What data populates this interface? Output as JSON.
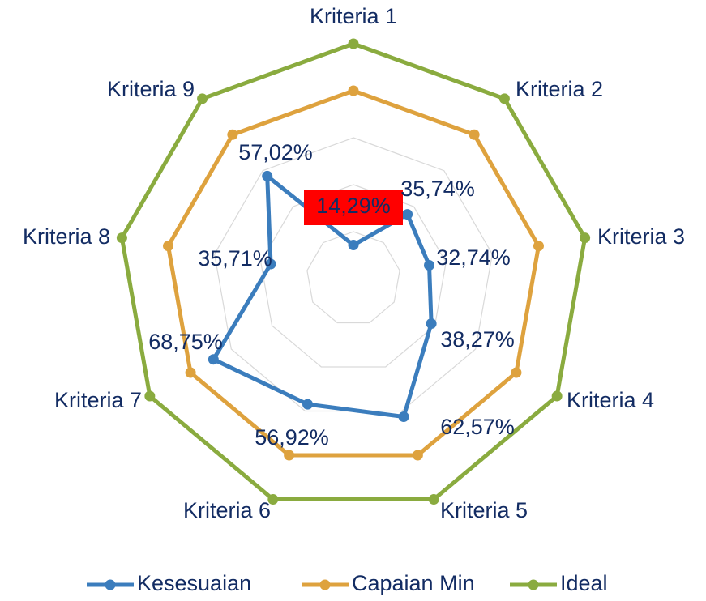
{
  "chart_data": {
    "type": "radar",
    "categories": [
      "Kriteria 1",
      "Kriteria 2",
      "Kriteria 3",
      "Kriteria 4",
      "Kriteria 5",
      "Kriteria 6",
      "Kriteria 7",
      "Kriteria 8",
      "Kriteria 9"
    ],
    "series": [
      {
        "name": "Kesesuaian",
        "color": "#3b7dbd",
        "values": [
          14.29,
          35.74,
          32.74,
          38.27,
          62.57,
          56.92,
          68.75,
          35.71,
          57.02
        ],
        "value_labels": [
          "14,29%",
          "35,74%",
          "32,74%",
          "38,27%",
          "62,57%",
          "56,92%",
          "68,75%",
          "35,71%",
          "57,02%"
        ]
      },
      {
        "name": "Capaian Min",
        "color": "#dea23e",
        "values": [
          80,
          80,
          80,
          80,
          80,
          80,
          80,
          80,
          80
        ]
      },
      {
        "name": "Ideal",
        "color": "#8aab3f",
        "values": [
          100,
          100,
          100,
          100,
          100,
          100,
          100,
          100,
          100
        ]
      }
    ],
    "ylim": [
      0,
      100
    ],
    "yticks": [
      0,
      20,
      40,
      60,
      80,
      100
    ],
    "grid": true,
    "highlight_index": 0,
    "highlight_color": "#ff0000"
  }
}
